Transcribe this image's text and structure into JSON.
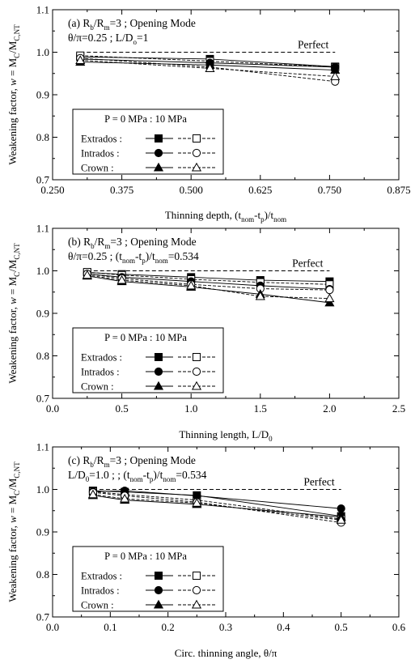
{
  "chart_data": [
    {
      "type": "line",
      "title_lines": [
        {
          "segments": [
            [
              "t",
              "(a) R"
            ],
            [
              "sub",
              "b"
            ],
            [
              "t",
              "/R"
            ],
            [
              "sub",
              "m"
            ],
            [
              "t",
              "=3 ; Opening Mode"
            ]
          ]
        },
        {
          "segments": [
            [
              "t",
              "θ/π=0.25 ; L/D"
            ],
            [
              "sub",
              "o"
            ],
            [
              "t",
              "=1"
            ]
          ]
        }
      ],
      "xlabel_segments": [
        [
          "t",
          "Thinning depth, (t"
        ],
        [
          "sub",
          "nom"
        ],
        [
          "t",
          "-t"
        ],
        [
          "sub",
          "p"
        ],
        [
          "t",
          ")/t"
        ],
        [
          "sub",
          "nom"
        ]
      ],
      "ylabel_segments": [
        [
          "t",
          "Weakening factor, "
        ],
        [
          "i",
          "w"
        ],
        [
          "t",
          " = M"
        ],
        [
          "sub",
          "C"
        ],
        [
          "t",
          "/M"
        ],
        [
          "sub",
          "C,NT"
        ]
      ],
      "xlim": [
        0.25,
        0.875
      ],
      "ylim": [
        0.7,
        1.1
      ],
      "xticks": [
        0.25,
        0.375,
        0.5,
        0.625,
        0.75,
        0.875
      ],
      "xtick_labels": [
        "0.250",
        "0.375",
        "0.500",
        "0.625",
        "0.750",
        "0.875"
      ],
      "yticks": [
        0.7,
        0.8,
        0.9,
        1.0,
        1.1
      ],
      "ytick_labels": [
        "0.7",
        "0.8",
        "0.9",
        "1.0",
        "1.1"
      ],
      "perfect": {
        "label": "Perfect",
        "y": 1.0,
        "x": [
          0.3,
          0.76
        ]
      },
      "x": [
        0.3,
        0.534,
        0.76
      ],
      "series": [
        {
          "name": "Extrados",
          "pressure": "P = 0 MPa",
          "marker": "square",
          "filled": true,
          "values": [
            0.989,
            0.984,
            0.966
          ]
        },
        {
          "name": "Extrados",
          "pressure": "10 MPa",
          "marker": "square",
          "filled": false,
          "values": [
            0.992,
            0.979,
            0.965
          ]
        },
        {
          "name": "Intrados",
          "pressure": "P = 0 MPa",
          "marker": "circle",
          "filled": true,
          "values": [
            0.984,
            0.975,
            0.965
          ]
        },
        {
          "name": "Intrados",
          "pressure": "10 MPa",
          "marker": "circle",
          "filled": false,
          "values": [
            0.986,
            0.965,
            0.931
          ]
        },
        {
          "name": "Crown",
          "pressure": "P = 0 MPa",
          "marker": "triangle",
          "filled": true,
          "values": [
            0.977,
            0.97,
            0.958
          ]
        },
        {
          "name": "Crown",
          "pressure": "10 MPa",
          "marker": "triangle",
          "filled": false,
          "values": [
            0.981,
            0.962,
            0.943
          ]
        }
      ],
      "legend": {
        "header": "P = 0 MPa : 10 MPa",
        "rows": [
          "Extrados  :",
          "Intrados  :",
          "Crown     :"
        ]
      }
    },
    {
      "type": "line",
      "title_lines": [
        {
          "segments": [
            [
              "t",
              "(b) R"
            ],
            [
              "sub",
              "b"
            ],
            [
              "t",
              "/R"
            ],
            [
              "sub",
              "m"
            ],
            [
              "t",
              "=3 ; Opening Mode"
            ]
          ]
        },
        {
          "segments": [
            [
              "t",
              "θ/π=0.25 ; (t"
            ],
            [
              "sub",
              "nom"
            ],
            [
              "t",
              "-t"
            ],
            [
              "sub",
              "p"
            ],
            [
              "t",
              ")/t"
            ],
            [
              "sub",
              "nom"
            ],
            [
              "t",
              "=0.534"
            ]
          ]
        }
      ],
      "xlabel_segments": [
        [
          "t",
          "Thinning length, L/D"
        ],
        [
          "sub",
          "0"
        ]
      ],
      "ylabel_segments": [
        [
          "t",
          "Weakening factor, "
        ],
        [
          "i",
          "w"
        ],
        [
          "t",
          " = M"
        ],
        [
          "sub",
          "C"
        ],
        [
          "t",
          "/M"
        ],
        [
          "sub",
          "C,NT"
        ]
      ],
      "xlim": [
        0.0,
        2.5
      ],
      "ylim": [
        0.7,
        1.1
      ],
      "xticks": [
        0.0,
        0.5,
        1.0,
        1.5,
        2.0,
        2.5
      ],
      "xtick_labels": [
        "0.0",
        "0.5",
        "1.0",
        "1.5",
        "2.0",
        "2.5"
      ],
      "yticks": [
        0.7,
        0.8,
        0.9,
        1.0,
        1.1
      ],
      "ytick_labels": [
        "0.7",
        "0.8",
        "0.9",
        "1.0",
        "1.1"
      ],
      "perfect": {
        "label": "Perfect",
        "y": 1.0,
        "x": [
          0.25,
          2.0
        ]
      },
      "x": [
        0.25,
        0.5,
        1.0,
        1.5,
        2.0
      ],
      "series": [
        {
          "name": "Extrados",
          "pressure": "P = 0 MPa",
          "marker": "square",
          "filled": true,
          "values": [
            0.996,
            0.992,
            0.985,
            0.978,
            0.975
          ]
        },
        {
          "name": "Extrados",
          "pressure": "10 MPa",
          "marker": "square",
          "filled": false,
          "values": [
            0.997,
            0.99,
            0.98,
            0.973,
            0.968
          ]
        },
        {
          "name": "Intrados",
          "pressure": "P = 0 MPa",
          "marker": "circle",
          "filled": true,
          "values": [
            0.993,
            0.985,
            0.975,
            0.965,
            0.957
          ]
        },
        {
          "name": "Intrados",
          "pressure": "10 MPa",
          "marker": "circle",
          "filled": false,
          "values": [
            0.993,
            0.982,
            0.968,
            0.958,
            0.955
          ]
        },
        {
          "name": "Crown",
          "pressure": "P = 0 MPa",
          "marker": "triangle",
          "filled": true,
          "values": [
            0.988,
            0.975,
            0.962,
            0.945,
            0.925
          ]
        },
        {
          "name": "Crown",
          "pressure": "10 MPa",
          "marker": "triangle",
          "filled": false,
          "values": [
            0.99,
            0.978,
            0.965,
            0.94,
            0.935
          ]
        }
      ],
      "legend": {
        "header": "P = 0 MPa : 10 MPa",
        "rows": [
          "Extrados  :",
          "Intrados  :",
          "Crown     :"
        ]
      }
    },
    {
      "type": "line",
      "title_lines": [
        {
          "segments": [
            [
              "t",
              "(c) R"
            ],
            [
              "sub",
              "b"
            ],
            [
              "t",
              "/R"
            ],
            [
              "sub",
              "m"
            ],
            [
              "t",
              "=3 ; Opening Mode"
            ]
          ]
        },
        {
          "segments": [
            [
              "t",
              "L/D"
            ],
            [
              "sub",
              "0"
            ],
            [
              "t",
              "=1.0 ; ; (t"
            ],
            [
              "sub",
              "nom"
            ],
            [
              "t",
              "-t"
            ],
            [
              "sub",
              "p"
            ],
            [
              "t",
              ")/t"
            ],
            [
              "sub",
              "nom"
            ],
            [
              "t",
              "=0.534"
            ]
          ]
        }
      ],
      "xlabel_segments": [
        [
          "t",
          "Circ. thinning angle, θ/π"
        ]
      ],
      "ylabel_segments": [
        [
          "t",
          "Weakening factor, "
        ],
        [
          "i",
          "w"
        ],
        [
          "t",
          " = M"
        ],
        [
          "sub",
          "C"
        ],
        [
          "t",
          "/M"
        ],
        [
          "sub",
          "C,NT"
        ]
      ],
      "xlim": [
        0.0,
        0.6
      ],
      "ylim": [
        0.7,
        1.1
      ],
      "xticks": [
        0.0,
        0.1,
        0.2,
        0.3,
        0.4,
        0.5,
        0.6
      ],
      "xtick_labels": [
        "0.0",
        "0.1",
        "0.2",
        "0.3",
        "0.4",
        "0.5",
        "0.6"
      ],
      "yticks": [
        0.7,
        0.8,
        0.9,
        1.0,
        1.1
      ],
      "ytick_labels": [
        "0.7",
        "0.8",
        "0.9",
        "1.0",
        "1.1"
      ],
      "perfect": {
        "label": "Perfect",
        "y": 1.0,
        "x": [
          0.07,
          0.5
        ]
      },
      "x": [
        0.07,
        0.125,
        0.25,
        0.5
      ],
      "series": [
        {
          "name": "Extrados",
          "pressure": "P = 0 MPa",
          "marker": "square",
          "filled": true,
          "values": [
            0.997,
            0.994,
            0.986,
            0.937
          ]
        },
        {
          "name": "Extrados",
          "pressure": "10 MPa",
          "marker": "square",
          "filled": false,
          "values": [
            0.995,
            0.988,
            0.975,
            0.93
          ]
        },
        {
          "name": "Intrados",
          "pressure": "P = 0 MPa",
          "marker": "circle",
          "filled": true,
          "values": [
            0.995,
            0.997,
            0.985,
            0.955
          ]
        },
        {
          "name": "Intrados",
          "pressure": "10 MPa",
          "marker": "circle",
          "filled": false,
          "values": [
            0.993,
            0.985,
            0.97,
            0.922
          ]
        },
        {
          "name": "Crown",
          "pressure": "P = 0 MPa",
          "marker": "triangle",
          "filled": true,
          "values": [
            0.986,
            0.975,
            0.965,
            0.935
          ]
        },
        {
          "name": "Crown",
          "pressure": "10 MPa",
          "marker": "triangle",
          "filled": false,
          "values": [
            0.988,
            0.978,
            0.968,
            0.928
          ]
        }
      ],
      "legend": {
        "header": "P = 0 MPa : 10 MPa",
        "rows": [
          "Extrados  :",
          "Intrados  :",
          "Crown     :"
        ]
      }
    }
  ]
}
